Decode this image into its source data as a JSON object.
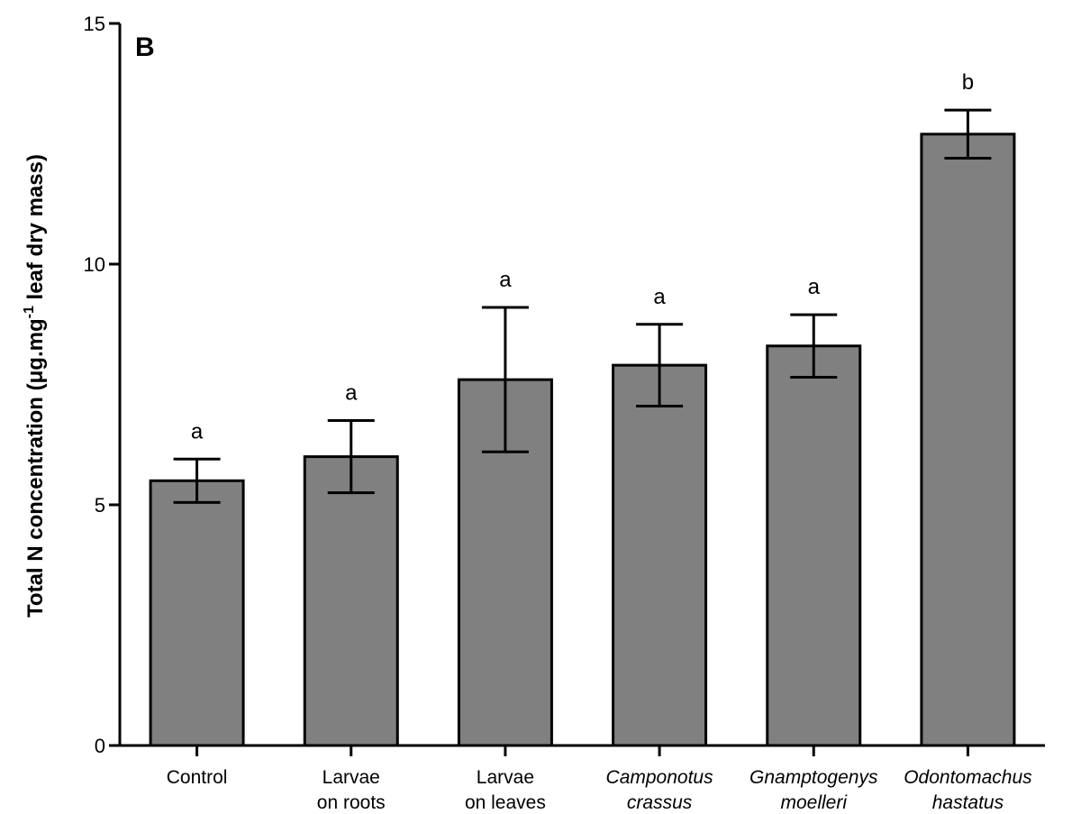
{
  "chart_data": {
    "type": "bar",
    "panel_label": "B",
    "ylabel": {
      "prefix": "Total N concentration (",
      "mu": "μ",
      "unit_main": "g.mg",
      "superscript": "-1",
      "suffix": " leaf dry mass)"
    },
    "ylim": [
      0,
      15
    ],
    "yticks": [
      "0",
      "5",
      "10",
      "15"
    ],
    "categories": [
      {
        "line1": "Control",
        "line2": "",
        "italic": false
      },
      {
        "line1": "Larvae",
        "line2": "on roots",
        "italic": false
      },
      {
        "line1": "Larvae",
        "line2": "on leaves",
        "italic": false
      },
      {
        "line1": "Camponotus",
        "line2": "crassus",
        "italic": true
      },
      {
        "line1": "Gnamptogenys",
        "line2": "moelleri",
        "italic": true
      },
      {
        "line1": "Odontomachus",
        "line2": "hastatus",
        "italic": true
      }
    ],
    "values": [
      5.5,
      6.0,
      7.6,
      7.9,
      8.3,
      12.7
    ],
    "errors": [
      0.45,
      0.75,
      1.5,
      0.85,
      0.65,
      0.5
    ],
    "significance": [
      "a",
      "a",
      "a",
      "a",
      "a",
      "b"
    ],
    "bar_color": "#808080",
    "grid": false
  }
}
